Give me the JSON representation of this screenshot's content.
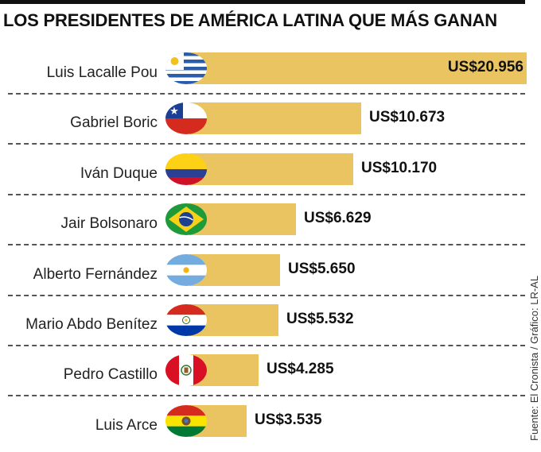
{
  "header": {
    "title": "LOS PRESIDENTES DE AMÉRICA LATINA QUE MÁS GANAN"
  },
  "footer": {
    "source": "Fuente: El Cronista / Gráfico: LR-AL"
  },
  "colors": {
    "bar": "#ebc462",
    "text": "#111111",
    "separator": "#555555"
  },
  "chart_data": {
    "type": "bar",
    "orientation": "horizontal",
    "categories": [
      "Luis Lacalle Pou",
      "Gabriel Boric",
      "Iván Duque",
      "Jair Bolsonaro",
      "Alberto Fernández",
      "Mario Abdo Benítez",
      "Pedro Castillo",
      "Luis Arce"
    ],
    "values": [
      20956,
      10673,
      10170,
      6629,
      5650,
      5532,
      4285,
      3535
    ],
    "value_labels": [
      "US$20.956",
      "US$10.673",
      "US$10.170",
      "US$6.629",
      "US$5.650",
      "US$5.532",
      "US$4.285",
      "US$3.535"
    ],
    "flags": [
      "uruguay-flag-icon",
      "chile-flag-icon",
      "colombia-flag-icon",
      "brazil-flag-icon",
      "argentina-flag-icon",
      "paraguay-flag-icon",
      "peru-flag-icon",
      "bolivia-flag-icon"
    ],
    "title": "LOS PRESIDENTES DE AMÉRICA LATINA QUE MÁS GANAN",
    "xlabel": "",
    "ylabel": "",
    "xlim": [
      0,
      20956
    ],
    "grid": false,
    "legend": "none"
  }
}
